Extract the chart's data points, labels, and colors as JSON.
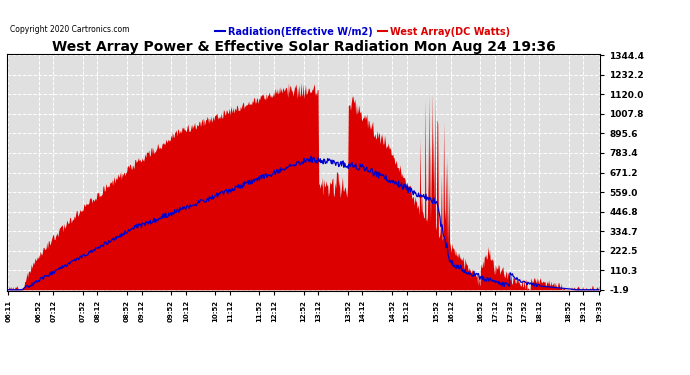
{
  "title": "West Array Power & Effective Solar Radiation Mon Aug 24 19:36",
  "copyright": "Copyright 2020 Cartronics.com",
  "legend_blue": "Radiation(Effective W/m2)",
  "legend_red": "West Array(DC Watts)",
  "yticks": [
    1344.4,
    1232.2,
    1120.0,
    1007.8,
    895.6,
    783.4,
    671.2,
    559.0,
    446.8,
    334.7,
    222.5,
    110.3,
    -1.9
  ],
  "ymin": -1.9,
  "ymax": 1344.4,
  "xtick_labels": [
    "06:11",
    "06:52",
    "07:12",
    "07:52",
    "08:12",
    "08:52",
    "09:12",
    "09:52",
    "10:12",
    "10:52",
    "11:12",
    "11:52",
    "12:12",
    "12:52",
    "13:12",
    "13:52",
    "14:12",
    "14:52",
    "15:12",
    "15:52",
    "16:12",
    "16:52",
    "17:12",
    "17:32",
    "17:52",
    "18:12",
    "18:52",
    "19:12",
    "19:33"
  ],
  "bg_color": "#ffffff",
  "plot_bg_color": "#e0e0e0",
  "grid_color": "#ffffff",
  "red_color": "#dd0000",
  "blue_color": "#0000cc",
  "title_color": "#000000",
  "copyright_color": "#000000"
}
